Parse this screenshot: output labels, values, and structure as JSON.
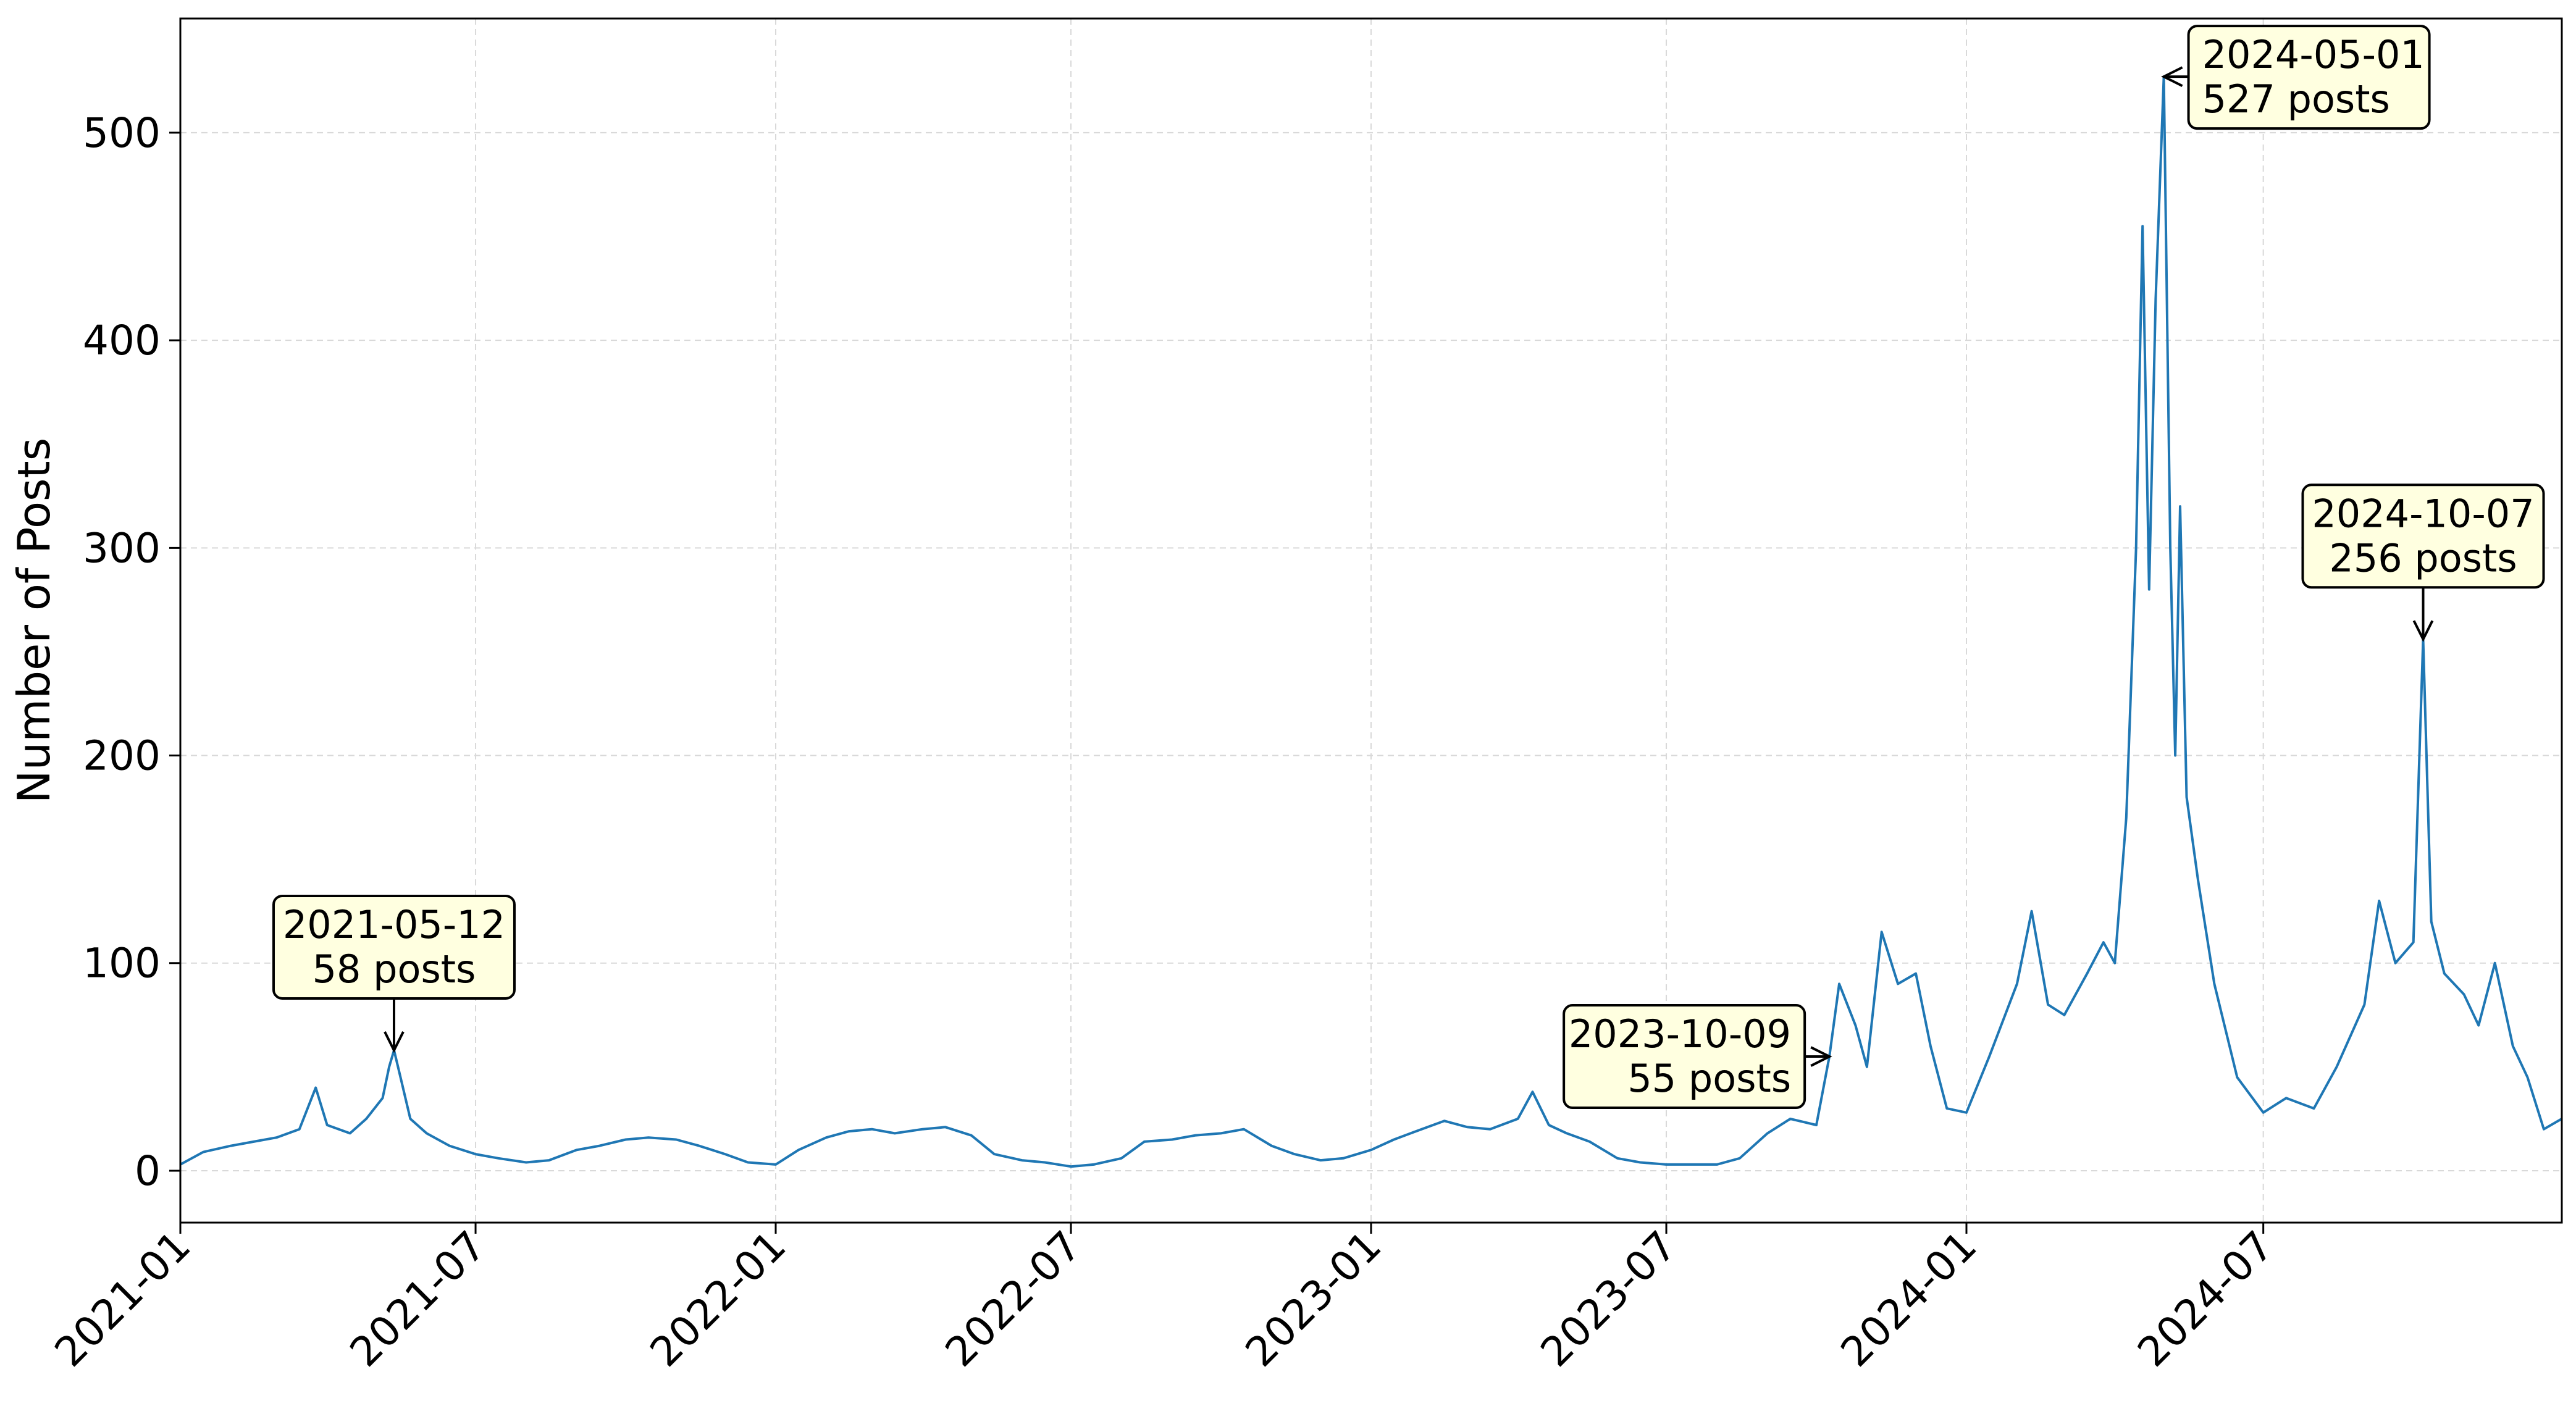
{
  "chart_data": {
    "type": "line",
    "title": "",
    "xlabel": "",
    "ylabel": "Number of Posts",
    "xlim": [
      "2021-01-01",
      "2024-12-31"
    ],
    "ylim": [
      -25,
      555
    ],
    "grid": true,
    "legend": "none",
    "colors": {
      "line": "#1f77b4",
      "grid": "#d9d9d9",
      "annotation_fill": "#ffffe0"
    },
    "x_ticks": [
      "2021-01",
      "2021-07",
      "2022-01",
      "2022-07",
      "2023-01",
      "2023-07",
      "2024-01",
      "2024-07"
    ],
    "y_ticks": [
      0,
      100,
      200,
      300,
      400,
      500
    ],
    "series": [
      {
        "values": [
          [
            "2021-01-01",
            3
          ],
          [
            "2021-01-15",
            9
          ],
          [
            "2021-02-01",
            12
          ],
          [
            "2021-02-15",
            14
          ],
          [
            "2021-03-01",
            16
          ],
          [
            "2021-03-15",
            20
          ],
          [
            "2021-03-25",
            40
          ],
          [
            "2021-04-01",
            22
          ],
          [
            "2021-04-15",
            18
          ],
          [
            "2021-04-25",
            25
          ],
          [
            "2021-05-05",
            35
          ],
          [
            "2021-05-09",
            50
          ],
          [
            "2021-05-12",
            58
          ],
          [
            "2021-05-16",
            45
          ],
          [
            "2021-05-22",
            25
          ],
          [
            "2021-06-01",
            18
          ],
          [
            "2021-06-15",
            12
          ],
          [
            "2021-07-01",
            8
          ],
          [
            "2021-07-15",
            6
          ],
          [
            "2021-08-01",
            4
          ],
          [
            "2021-08-15",
            5
          ],
          [
            "2021-09-01",
            10
          ],
          [
            "2021-09-15",
            12
          ],
          [
            "2021-10-01",
            15
          ],
          [
            "2021-10-15",
            16
          ],
          [
            "2021-11-01",
            15
          ],
          [
            "2021-11-15",
            12
          ],
          [
            "2021-12-01",
            8
          ],
          [
            "2021-12-15",
            4
          ],
          [
            "2022-01-01",
            3
          ],
          [
            "2022-01-15",
            10
          ],
          [
            "2022-02-01",
            16
          ],
          [
            "2022-02-15",
            19
          ],
          [
            "2022-03-01",
            20
          ],
          [
            "2022-03-15",
            18
          ],
          [
            "2022-04-01",
            20
          ],
          [
            "2022-04-15",
            21
          ],
          [
            "2022-05-01",
            17
          ],
          [
            "2022-05-15",
            8
          ],
          [
            "2022-06-01",
            5
          ],
          [
            "2022-06-15",
            4
          ],
          [
            "2022-07-01",
            2
          ],
          [
            "2022-07-15",
            3
          ],
          [
            "2022-08-01",
            6
          ],
          [
            "2022-08-15",
            14
          ],
          [
            "2022-09-01",
            15
          ],
          [
            "2022-09-15",
            17
          ],
          [
            "2022-10-01",
            18
          ],
          [
            "2022-10-15",
            20
          ],
          [
            "2022-11-01",
            12
          ],
          [
            "2022-11-15",
            8
          ],
          [
            "2022-12-01",
            5
          ],
          [
            "2022-12-15",
            6
          ],
          [
            "2023-01-01",
            10
          ],
          [
            "2023-01-15",
            15
          ],
          [
            "2023-02-01",
            20
          ],
          [
            "2023-02-15",
            24
          ],
          [
            "2023-03-01",
            21
          ],
          [
            "2023-03-15",
            20
          ],
          [
            "2023-04-01",
            25
          ],
          [
            "2023-04-10",
            38
          ],
          [
            "2023-04-20",
            22
          ],
          [
            "2023-05-01",
            18
          ],
          [
            "2023-05-15",
            14
          ],
          [
            "2023-06-01",
            6
          ],
          [
            "2023-06-15",
            4
          ],
          [
            "2023-07-01",
            3
          ],
          [
            "2023-07-15",
            3
          ],
          [
            "2023-08-01",
            3
          ],
          [
            "2023-08-15",
            6
          ],
          [
            "2023-09-01",
            18
          ],
          [
            "2023-09-15",
            25
          ],
          [
            "2023-10-01",
            22
          ],
          [
            "2023-10-09",
            55
          ],
          [
            "2023-10-15",
            90
          ],
          [
            "2023-10-25",
            70
          ],
          [
            "2023-11-01",
            50
          ],
          [
            "2023-11-10",
            115
          ],
          [
            "2023-11-20",
            90
          ],
          [
            "2023-12-01",
            95
          ],
          [
            "2023-12-10",
            60
          ],
          [
            "2023-12-20",
            30
          ],
          [
            "2024-01-01",
            28
          ],
          [
            "2024-01-15",
            55
          ],
          [
            "2024-02-01",
            90
          ],
          [
            "2024-02-10",
            125
          ],
          [
            "2024-02-20",
            80
          ],
          [
            "2024-03-01",
            75
          ],
          [
            "2024-03-15",
            95
          ],
          [
            "2024-03-25",
            110
          ],
          [
            "2024-04-01",
            100
          ],
          [
            "2024-04-08",
            170
          ],
          [
            "2024-04-14",
            300
          ],
          [
            "2024-04-18",
            455
          ],
          [
            "2024-04-22",
            280
          ],
          [
            "2024-04-26",
            420
          ],
          [
            "2024-05-01",
            527
          ],
          [
            "2024-05-05",
            300
          ],
          [
            "2024-05-08",
            200
          ],
          [
            "2024-05-11",
            320
          ],
          [
            "2024-05-15",
            180
          ],
          [
            "2024-05-22",
            140
          ],
          [
            "2024-06-01",
            90
          ],
          [
            "2024-06-15",
            45
          ],
          [
            "2024-07-01",
            28
          ],
          [
            "2024-07-15",
            35
          ],
          [
            "2024-08-01",
            30
          ],
          [
            "2024-08-15",
            50
          ],
          [
            "2024-09-01",
            80
          ],
          [
            "2024-09-10",
            130
          ],
          [
            "2024-09-20",
            100
          ],
          [
            "2024-10-01",
            110
          ],
          [
            "2024-10-07",
            256
          ],
          [
            "2024-10-12",
            120
          ],
          [
            "2024-10-20",
            95
          ],
          [
            "2024-11-01",
            85
          ],
          [
            "2024-11-10",
            70
          ],
          [
            "2024-11-20",
            100
          ],
          [
            "2024-12-01",
            60
          ],
          [
            "2024-12-10",
            45
          ],
          [
            "2024-12-20",
            20
          ],
          [
            "2024-12-31",
            25
          ]
        ]
      }
    ],
    "annotations": [
      {
        "date": "2021-05-12",
        "value": 58,
        "line1": "2021-05-12",
        "line2": "58 posts",
        "box": "above"
      },
      {
        "date": "2023-10-09",
        "value": 55,
        "line1": "2023-10-09",
        "line2": "55 posts",
        "box": "left"
      },
      {
        "date": "2024-05-01",
        "value": 527,
        "line1": "2024-05-01",
        "line2": "527 posts",
        "box": "right"
      },
      {
        "date": "2024-10-07",
        "value": 256,
        "line1": "2024-10-07",
        "line2": "256 posts",
        "box": "above"
      }
    ]
  }
}
